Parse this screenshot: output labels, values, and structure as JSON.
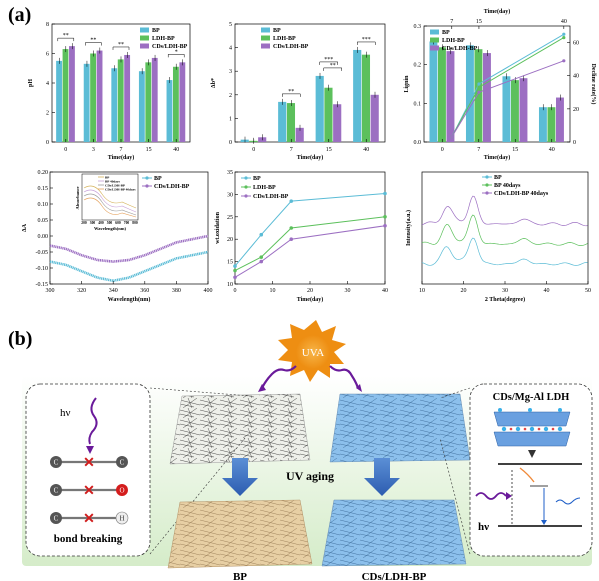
{
  "panel_a_label": "(a)",
  "panel_b_label": "(b)",
  "colors": {
    "bp": "#5bbcd6",
    "ldh": "#5cc05c",
    "cds": "#9c6fc2",
    "uva_sun": "#f29a1d"
  },
  "chart_data": [
    {
      "type": "bar",
      "id": "ph",
      "xlabel": "Time(day)",
      "ylabel": "pH",
      "categories": [
        "0",
        "3",
        "7",
        "15",
        "40"
      ],
      "ylim": [
        0,
        8
      ],
      "yticks": [
        "0",
        "2",
        "4",
        "6",
        "8"
      ],
      "series": [
        {
          "name": "BP",
          "values": [
            5.5,
            5.3,
            5.0,
            4.8,
            4.2
          ]
        },
        {
          "name": "LDH-BP",
          "values": [
            6.3,
            6.0,
            5.6,
            5.4,
            5.1
          ]
        },
        {
          "name": "CDs/LDH-BP",
          "values": [
            6.5,
            6.2,
            5.9,
            5.7,
            5.4
          ]
        }
      ],
      "annotations": [
        "**",
        "**",
        "**",
        "*"
      ]
    },
    {
      "type": "bar",
      "id": "db",
      "xlabel": "Time(day)",
      "ylabel": "Δb*",
      "categories": [
        "0",
        "7",
        "15",
        "40"
      ],
      "ylim": [
        0,
        5
      ],
      "yticks": [
        "0",
        "1",
        "2",
        "3",
        "4",
        "5"
      ],
      "series": [
        {
          "name": "BP",
          "values": [
            0.1,
            1.7,
            2.8,
            3.9
          ]
        },
        {
          "name": "LDH-BP",
          "values": [
            0.05,
            1.65,
            2.3,
            3.7
          ]
        },
        {
          "name": "CDs/LDH-BP",
          "values": [
            0.2,
            0.6,
            1.6,
            2.0
          ]
        }
      ],
      "annotations": [
        "**",
        "***",
        "**",
        "***"
      ]
    },
    {
      "type": "bar",
      "id": "lignin",
      "xlabel": "Time(day)",
      "ylabel": "Lignin",
      "ylabel_right": "Decline rate(%)",
      "x2label": "Time(day)",
      "x2ticks": [
        "7",
        "15",
        "40"
      ],
      "categories": [
        "0",
        "7",
        "15",
        "40"
      ],
      "ylim": [
        0,
        0.3
      ],
      "yticks": [
        "0.0",
        "0.1",
        "0.2",
        "0.3"
      ],
      "yticks_right": [
        "0",
        "20",
        "40",
        "60"
      ],
      "series": [
        {
          "name": "BP",
          "values": [
            0.26,
            0.25,
            0.17,
            0.09
          ]
        },
        {
          "name": "LDH-BP",
          "values": [
            0.245,
            0.24,
            0.16,
            0.09
          ]
        },
        {
          "name": "CDs/LDH-BP",
          "values": [
            0.235,
            0.23,
            0.165,
            0.115
          ]
        }
      ],
      "decline_lines": [
        {
          "name": "BP",
          "values": [
            3,
            35,
            65
          ]
        },
        {
          "name": "LDH-BP",
          "values": [
            3,
            33,
            63
          ]
        },
        {
          "name": "CDs/LDH-BP",
          "values": [
            3,
            30,
            49
          ]
        }
      ]
    },
    {
      "type": "line",
      "id": "uvvis",
      "xlabel": "Wavelength(nm)",
      "ylabel": "ΔA",
      "xlim": [
        300,
        400
      ],
      "ylim": [
        -0.15,
        0.2
      ],
      "xticks": [
        "300",
        "320",
        "340",
        "360",
        "380",
        "400"
      ],
      "yticks": [
        "0.20",
        "0.15",
        "0.10",
        "0.05",
        "0.00",
        "-0.05",
        "-0.10",
        "-0.15"
      ],
      "series": [
        {
          "name": "BP",
          "points": [
            [
              300,
              -0.08
            ],
            [
              310,
              -0.09
            ],
            [
              320,
              -0.11
            ],
            [
              330,
              -0.13
            ],
            [
              340,
              -0.14
            ],
            [
              350,
              -0.13
            ],
            [
              360,
              -0.11
            ],
            [
              370,
              -0.09
            ],
            [
              380,
              -0.07
            ],
            [
              390,
              -0.06
            ],
            [
              400,
              -0.05
            ]
          ]
        },
        {
          "name": "CDs/LDH-BP",
          "points": [
            [
              300,
              -0.03
            ],
            [
              310,
              -0.04
            ],
            [
              320,
              -0.06
            ],
            [
              330,
              -0.075
            ],
            [
              340,
              -0.08
            ],
            [
              350,
              -0.075
            ],
            [
              360,
              -0.06
            ],
            [
              370,
              -0.04
            ],
            [
              380,
              -0.02
            ],
            [
              390,
              -0.01
            ],
            [
              400,
              0.0
            ]
          ]
        }
      ],
      "inset": {
        "xlabel": "Wavelength(nm)",
        "ylabel": "Absorbance",
        "xticks": [
          "200",
          "300",
          "400",
          "500",
          "600",
          "700",
          "800"
        ],
        "legend": [
          "BP",
          "BP 40days",
          "CDs/LDH-BP",
          "CDs/LDH-BP 40days"
        ]
      }
    },
    {
      "type": "line",
      "id": "oxidation",
      "xlabel": "Time(day)",
      "ylabel": "wt.oxidation",
      "xlim": [
        0,
        40
      ],
      "ylim": [
        10,
        35
      ],
      "xticks": [
        "0",
        "10",
        "20",
        "30",
        "40"
      ],
      "yticks": [
        "10",
        "15",
        "20",
        "25",
        "30",
        "35"
      ],
      "series": [
        {
          "name": "BP",
          "points": [
            [
              0,
              14
            ],
            [
              7,
              21
            ],
            [
              15,
              28.5
            ],
            [
              40,
              30.2
            ]
          ]
        },
        {
          "name": "LDH-BP",
          "points": [
            [
              0,
              13
            ],
            [
              7,
              16
            ],
            [
              15,
              22.5
            ],
            [
              40,
              25
            ]
          ]
        },
        {
          "name": "CDs/LDH-BP",
          "points": [
            [
              0,
              11.5
            ],
            [
              7,
              15
            ],
            [
              15,
              20
            ],
            [
              40,
              23
            ]
          ]
        }
      ]
    },
    {
      "type": "line",
      "id": "xrd",
      "xlabel": "2 Theta(degree)",
      "ylabel": "Intensity(a.u.)",
      "xlim": [
        10,
        50
      ],
      "xticks": [
        "10",
        "20",
        "30",
        "40",
        "50"
      ],
      "series": [
        {
          "name": "BP"
        },
        {
          "name": "BP 40days"
        },
        {
          "name": "CDs/LDH-BP 40days"
        }
      ]
    }
  ],
  "diagram": {
    "uva_label": "UVA",
    "hv_label": "hν",
    "bond_breaking_label": "bond breaking",
    "atoms": {
      "c": "C",
      "o": "O",
      "h": "H"
    },
    "uv_aging_label": "UV aging",
    "bp_label": "BP",
    "cds_ldh_bp_label": "CDs/LDH-BP",
    "cds_mgal_label": "CDs/Mg-Al LDH",
    "hv_right_label": "hν"
  }
}
